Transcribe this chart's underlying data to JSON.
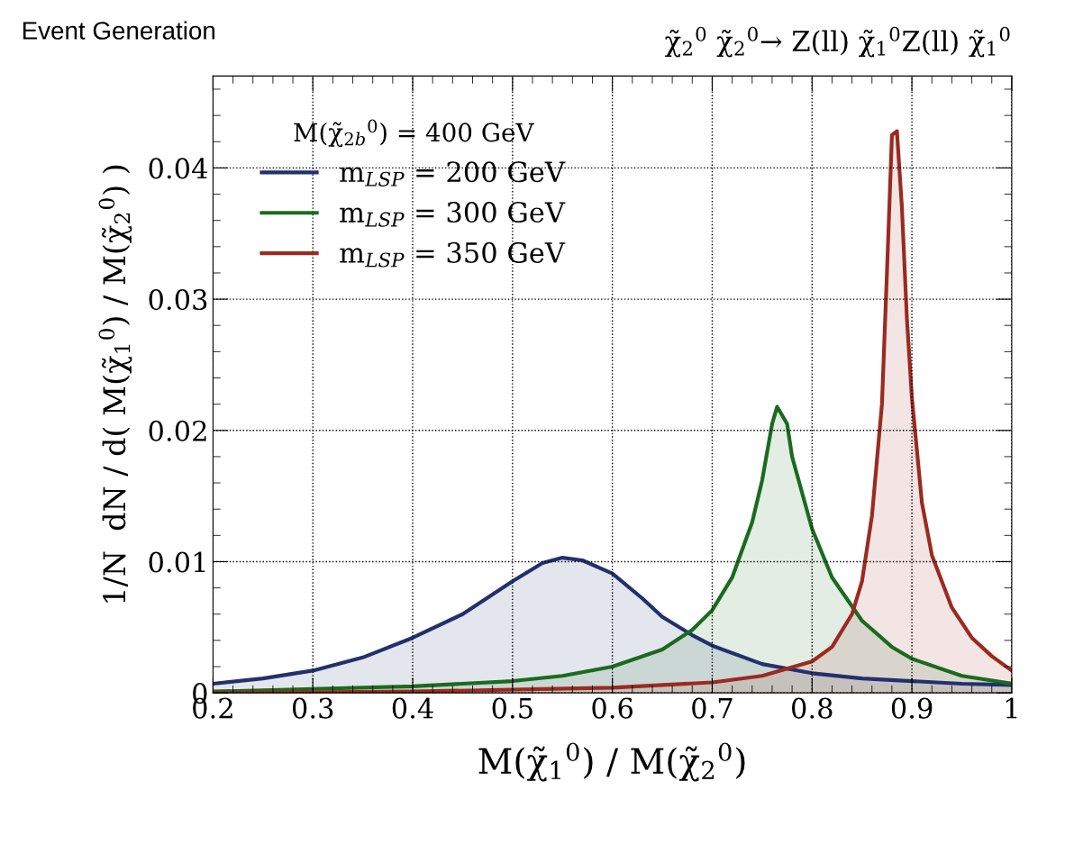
{
  "chart_data": {
    "type": "area",
    "title": "χ̃$_{2}$$^{0}$ χ̃$_{2}$$^{0}$→ Z(ll) χ̃$_{1}$$^{0}$Z(ll) χ̃$_{1}$$^{0}$",
    "annotations": [
      "Event Generation"
    ],
    "xlabel": "M(χ̃$_{1}$$^{0}$) / M(χ̃$_{2}$$^{0}$)",
    "ylabel": "1/N  dN / d( M(χ̃$_{1}$$^{0}$) / M(χ̃$_{2}$$^{0}$) )",
    "legend_title": "M(χ̃$_{2b}$$^{0}$) = 400 GeV",
    "legend": "top left",
    "grid": true,
    "xlim": [
      0.2,
      1
    ],
    "xticks": [
      0.2,
      0.3,
      0.4,
      0.5,
      0.6,
      0.7,
      0.8,
      0.9,
      1
    ],
    "ylim": [
      0,
      0.047
    ],
    "yticks": [
      0,
      0.01,
      0.02,
      0.03,
      0.04
    ],
    "series": [
      {
        "name": "m$_{LSP}$ = 200 GeV",
        "color": "#22306e",
        "x": [
          0.2,
          0.25,
          0.3,
          0.35,
          0.4,
          0.45,
          0.5,
          0.53,
          0.55,
          0.57,
          0.6,
          0.63,
          0.65,
          0.68,
          0.7,
          0.75,
          0.8,
          0.85,
          0.9,
          0.95,
          1.0
        ],
        "values": [
          0.0007,
          0.0011,
          0.0017,
          0.0027,
          0.0042,
          0.006,
          0.0085,
          0.0099,
          0.0103,
          0.0101,
          0.0091,
          0.0072,
          0.0058,
          0.0044,
          0.0036,
          0.0022,
          0.0015,
          0.0011,
          0.0009,
          0.0007,
          0.0006
        ]
      },
      {
        "name": "m$_{LSP}$ = 300 GeV",
        "color": "#1a6b1e",
        "x": [
          0.2,
          0.3,
          0.4,
          0.5,
          0.55,
          0.6,
          0.65,
          0.68,
          0.7,
          0.72,
          0.74,
          0.75,
          0.76,
          0.765,
          0.775,
          0.78,
          0.8,
          0.82,
          0.85,
          0.88,
          0.9,
          0.95,
          1.0
        ],
        "values": [
          0.0001,
          0.0003,
          0.0005,
          0.0009,
          0.0013,
          0.002,
          0.0033,
          0.0048,
          0.0063,
          0.0088,
          0.013,
          0.0162,
          0.0205,
          0.0218,
          0.0205,
          0.018,
          0.0125,
          0.0088,
          0.0055,
          0.0035,
          0.0026,
          0.0013,
          0.0007
        ]
      },
      {
        "name": "m$_{LSP}$ = 350 GeV",
        "color": "#9b2a1f",
        "x": [
          0.2,
          0.4,
          0.6,
          0.7,
          0.75,
          0.8,
          0.82,
          0.84,
          0.85,
          0.86,
          0.87,
          0.875,
          0.88,
          0.885,
          0.89,
          0.895,
          0.9,
          0.91,
          0.92,
          0.94,
          0.96,
          0.98,
          1.0
        ],
        "values": [
          0.0,
          0.0001,
          0.0004,
          0.0008,
          0.0013,
          0.0024,
          0.0035,
          0.006,
          0.0085,
          0.0135,
          0.022,
          0.032,
          0.0425,
          0.0428,
          0.037,
          0.0285,
          0.0225,
          0.0145,
          0.0105,
          0.0065,
          0.0042,
          0.0028,
          0.0017
        ]
      }
    ]
  }
}
